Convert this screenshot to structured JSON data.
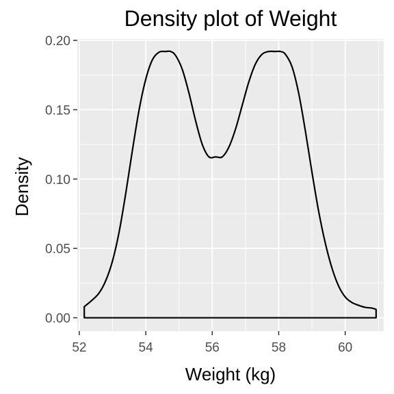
{
  "chart_data": {
    "type": "area",
    "title": "Density plot of Weight",
    "xlabel": "Weight (kg)",
    "ylabel": "Density",
    "xlim": [
      51.94,
      61.16
    ],
    "ylim": [
      -0.0096,
      0.201
    ],
    "x_ticks": [
      52,
      54,
      56,
      58,
      60
    ],
    "x_tick_labels": [
      "52",
      "54",
      "56",
      "58",
      "60"
    ],
    "y_ticks": [
      0,
      0.05,
      0.1,
      0.15,
      0.2
    ],
    "y_tick_labels": [
      "0.00",
      "0.05",
      "0.10",
      "0.15",
      "0.20"
    ],
    "grid": true,
    "panel_background": "#ebebeb",
    "grid_color": "#ffffff",
    "line_color": "#000000",
    "fill_color": "none",
    "series": [
      {
        "x": [
          52.15,
          52.4,
          52.6,
          52.8,
          53.0,
          53.2,
          53.4,
          53.6,
          53.8,
          54.0,
          54.2,
          54.4,
          54.6,
          54.75,
          54.9,
          55.1,
          55.3,
          55.5,
          55.7,
          55.9,
          56.1,
          56.3,
          56.5,
          56.7,
          56.9,
          57.1,
          57.3,
          57.5,
          57.7,
          57.9,
          58.05,
          58.2,
          58.4,
          58.6,
          58.8,
          59.0,
          59.2,
          59.4,
          59.6,
          59.8,
          60.0,
          60.2,
          60.4,
          60.6,
          60.8,
          60.93
        ],
        "y": [
          0.008,
          0.013,
          0.018,
          0.027,
          0.041,
          0.062,
          0.09,
          0.121,
          0.15,
          0.172,
          0.186,
          0.1915,
          0.192,
          0.192,
          0.189,
          0.179,
          0.162,
          0.142,
          0.125,
          0.116,
          0.116,
          0.116,
          0.123,
          0.136,
          0.153,
          0.17,
          0.183,
          0.19,
          0.192,
          0.192,
          0.192,
          0.19,
          0.181,
          0.162,
          0.135,
          0.105,
          0.077,
          0.054,
          0.036,
          0.023,
          0.015,
          0.011,
          0.009,
          0.0075,
          0.007,
          0.006
        ]
      }
    ]
  }
}
